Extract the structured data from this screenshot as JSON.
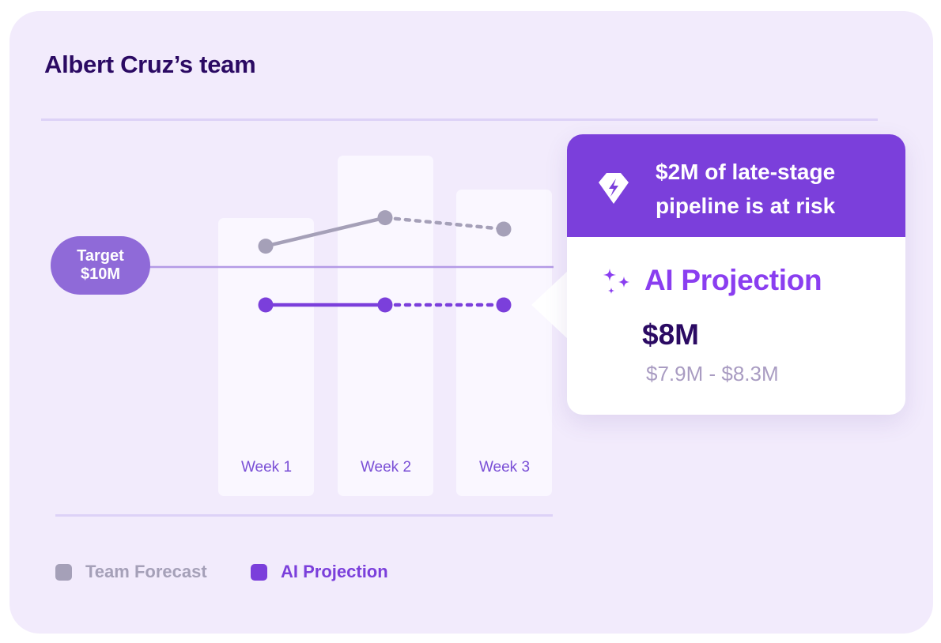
{
  "header": {
    "title": "Albert Cruz’s team"
  },
  "target": {
    "line1": "Target",
    "line2": "$10M",
    "value": 10
  },
  "chart_data": {
    "type": "line",
    "categories": [
      "Week 1",
      "Week 2",
      "Week 3"
    ],
    "series": [
      {
        "name": "Team Forecast",
        "values": [
          11.1,
          12.6,
          12.0
        ],
        "actual_points": 2,
        "color": "#a5a0b8"
      },
      {
        "name": "AI Projection",
        "values": [
          8,
          8,
          8
        ],
        "actual_points": 2,
        "color": "#7b3fdb"
      }
    ],
    "target_line": 10,
    "legend_position": "bottom-left",
    "grid": false
  },
  "callout": {
    "risk_text_line1": "$2M of late-stage",
    "risk_text_line2": "pipeline is at risk",
    "title": "AI Projection",
    "value": "$8M",
    "range": "$7.9M - $8.3M",
    "icons": {
      "risk": "lightning-diamond-icon",
      "title": "sparkle-icon"
    }
  },
  "legend": [
    {
      "label": "Team Forecast",
      "color": "#a5a0b8",
      "label_color": "#a5a0b8"
    },
    {
      "label": "AI Projection",
      "color": "#7b3fdb",
      "label_color": "#7b3fdb"
    }
  ],
  "colors": {
    "background": "#f2ebfc",
    "accent": "#7b3fdb",
    "title": "#2b0a63",
    "target_badge": "#8f6ad8"
  }
}
